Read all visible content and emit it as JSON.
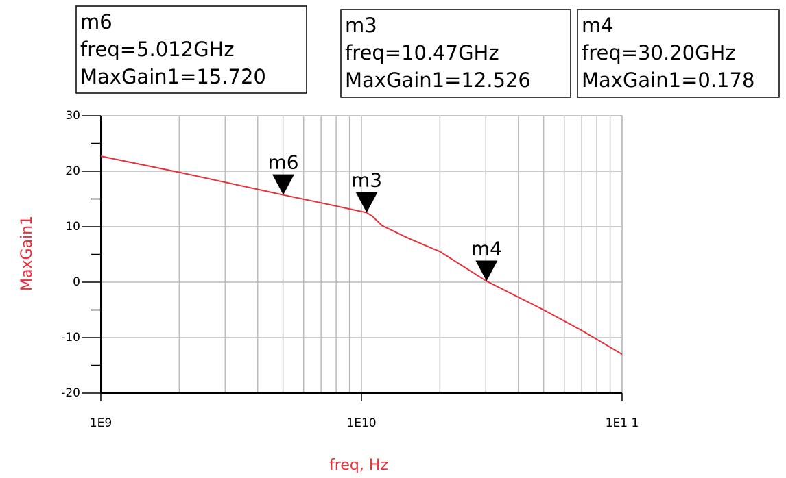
{
  "chart_data": {
    "type": "line",
    "xlabel": "freq, Hz",
    "ylabel": "MaxGain1",
    "log_x": true,
    "grid": true,
    "xlim": [
      1000000000,
      100000000000
    ],
    "xticks": [
      {
        "value": 1000000000,
        "label": "1E9"
      },
      {
        "value": 10000000000,
        "label": "1E10"
      },
      {
        "value": 100000000000,
        "label": "1E1 1"
      }
    ],
    "xgrid": [
      2000000000,
      3000000000,
      4000000000,
      5000000000,
      6000000000,
      7000000000,
      8000000000,
      9000000000,
      20000000000,
      30000000000,
      40000000000,
      50000000000,
      60000000000,
      70000000000,
      80000000000,
      90000000000
    ],
    "ylim": [
      -20,
      30
    ],
    "yticks": [
      -20,
      -10,
      0,
      10,
      20,
      30
    ],
    "yminor": [
      -15,
      -5,
      5,
      15,
      25
    ],
    "series": [
      {
        "name": "MaxGain1",
        "color": "#e8303a",
        "x": [
          1000000000,
          2000000000,
          3000000000,
          5012000000,
          7000000000,
          10470000000,
          11000000000,
          12000000000,
          15000000000,
          20000000000,
          30200000000,
          50000000000,
          70000000000,
          100000000000
        ],
        "values": [
          22.7,
          19.8,
          18.0,
          15.72,
          14.3,
          12.526,
          11.9,
          10.2,
          8.0,
          5.5,
          0.178,
          -5.0,
          -8.7,
          -13.0
        ]
      }
    ],
    "markers": [
      {
        "name": "m6",
        "x": 5012000000,
        "y": 15.72,
        "freq_label": "freq=5.012GHz",
        "value_label": "MaxGain1=15.720"
      },
      {
        "name": "m3",
        "x": 10470000000,
        "y": 12.526,
        "freq_label": "freq=10.47GHz",
        "value_label": "MaxGain1=12.526"
      },
      {
        "name": "m4",
        "x": 30200000000,
        "y": 0.178,
        "freq_label": "freq=30.20GHz",
        "value_label": "MaxGain1=0.178"
      }
    ]
  }
}
